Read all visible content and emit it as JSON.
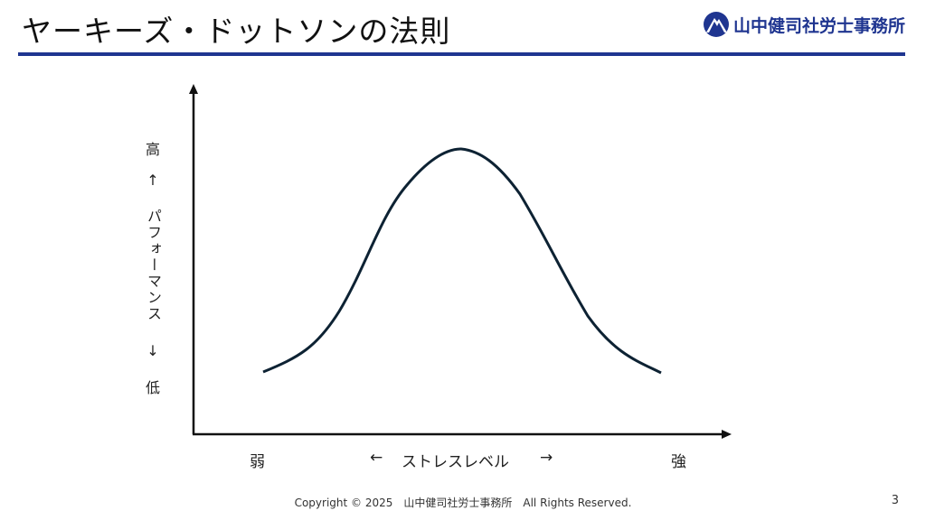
{
  "title": "ヤーキーズ・ドットソンの法則",
  "logo": {
    "text": "山中健司社労士事務所",
    "icon": "mountain-logo-icon",
    "color": "#1f3590"
  },
  "diagram": {
    "y_axis": {
      "high": "高",
      "up_arrow": "↑",
      "label": "パフォーマンス",
      "down_arrow": "↓",
      "low": "低"
    },
    "x_axis": {
      "weak": "弱",
      "left_arrow": "←",
      "label": "ストレスレベル",
      "right_arrow": "→",
      "strong": "強"
    },
    "curve": "bell-shaped inverted U",
    "line_color": "#0d2233"
  },
  "footer": {
    "copyright": "Copyright © 2025　山中健司社労士事務所　All Rights Reserved."
  },
  "page_number": "3"
}
